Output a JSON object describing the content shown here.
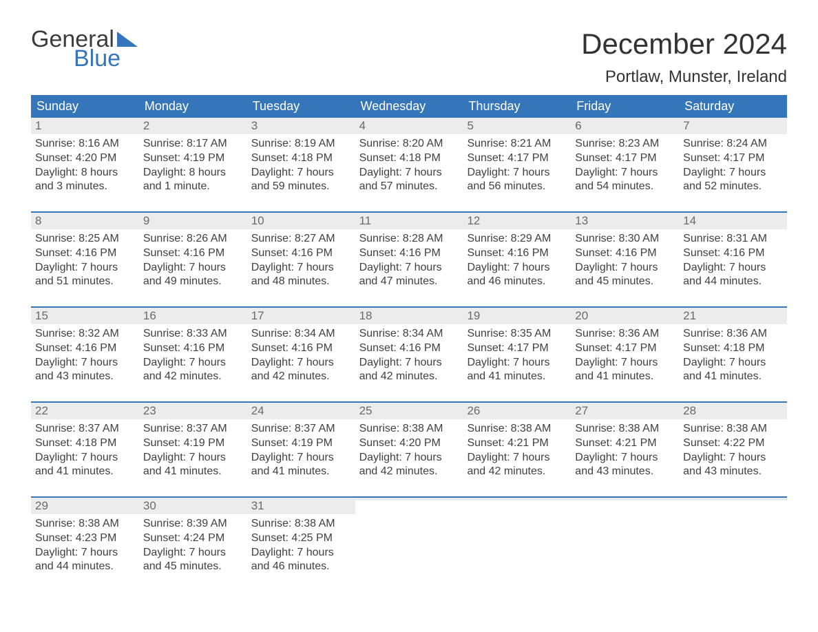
{
  "logo": {
    "general": "General",
    "blue": "Blue"
  },
  "title": "December 2024",
  "location": "Portlaw, Munster, Ireland",
  "colors": {
    "header_bg": "#3575b9",
    "header_text": "#ffffff",
    "daynum_bg": "#ececec",
    "daynum_text": "#6a6a6a",
    "body_text": "#404040",
    "page_bg": "#ffffff",
    "logo_general": "#3c3c3c",
    "logo_blue": "#3575b9",
    "week_border": "#3575b9"
  },
  "typography": {
    "title_fontsize": 42,
    "location_fontsize": 24,
    "dayheader_fontsize": 18,
    "daynum_fontsize": 17,
    "body_fontsize": 16,
    "logo_fontsize": 34
  },
  "day_labels": [
    "Sunday",
    "Monday",
    "Tuesday",
    "Wednesday",
    "Thursday",
    "Friday",
    "Saturday"
  ],
  "weeks": [
    [
      {
        "n": "1",
        "sunrise": "Sunrise: 8:16 AM",
        "sunset": "Sunset: 4:20 PM",
        "d1": "Daylight: 8 hours",
        "d2": "and 3 minutes."
      },
      {
        "n": "2",
        "sunrise": "Sunrise: 8:17 AM",
        "sunset": "Sunset: 4:19 PM",
        "d1": "Daylight: 8 hours",
        "d2": "and 1 minute."
      },
      {
        "n": "3",
        "sunrise": "Sunrise: 8:19 AM",
        "sunset": "Sunset: 4:18 PM",
        "d1": "Daylight: 7 hours",
        "d2": "and 59 minutes."
      },
      {
        "n": "4",
        "sunrise": "Sunrise: 8:20 AM",
        "sunset": "Sunset: 4:18 PM",
        "d1": "Daylight: 7 hours",
        "d2": "and 57 minutes."
      },
      {
        "n": "5",
        "sunrise": "Sunrise: 8:21 AM",
        "sunset": "Sunset: 4:17 PM",
        "d1": "Daylight: 7 hours",
        "d2": "and 56 minutes."
      },
      {
        "n": "6",
        "sunrise": "Sunrise: 8:23 AM",
        "sunset": "Sunset: 4:17 PM",
        "d1": "Daylight: 7 hours",
        "d2": "and 54 minutes."
      },
      {
        "n": "7",
        "sunrise": "Sunrise: 8:24 AM",
        "sunset": "Sunset: 4:17 PM",
        "d1": "Daylight: 7 hours",
        "d2": "and 52 minutes."
      }
    ],
    [
      {
        "n": "8",
        "sunrise": "Sunrise: 8:25 AM",
        "sunset": "Sunset: 4:16 PM",
        "d1": "Daylight: 7 hours",
        "d2": "and 51 minutes."
      },
      {
        "n": "9",
        "sunrise": "Sunrise: 8:26 AM",
        "sunset": "Sunset: 4:16 PM",
        "d1": "Daylight: 7 hours",
        "d2": "and 49 minutes."
      },
      {
        "n": "10",
        "sunrise": "Sunrise: 8:27 AM",
        "sunset": "Sunset: 4:16 PM",
        "d1": "Daylight: 7 hours",
        "d2": "and 48 minutes."
      },
      {
        "n": "11",
        "sunrise": "Sunrise: 8:28 AM",
        "sunset": "Sunset: 4:16 PM",
        "d1": "Daylight: 7 hours",
        "d2": "and 47 minutes."
      },
      {
        "n": "12",
        "sunrise": "Sunrise: 8:29 AM",
        "sunset": "Sunset: 4:16 PM",
        "d1": "Daylight: 7 hours",
        "d2": "and 46 minutes."
      },
      {
        "n": "13",
        "sunrise": "Sunrise: 8:30 AM",
        "sunset": "Sunset: 4:16 PM",
        "d1": "Daylight: 7 hours",
        "d2": "and 45 minutes."
      },
      {
        "n": "14",
        "sunrise": "Sunrise: 8:31 AM",
        "sunset": "Sunset: 4:16 PM",
        "d1": "Daylight: 7 hours",
        "d2": "and 44 minutes."
      }
    ],
    [
      {
        "n": "15",
        "sunrise": "Sunrise: 8:32 AM",
        "sunset": "Sunset: 4:16 PM",
        "d1": "Daylight: 7 hours",
        "d2": "and 43 minutes."
      },
      {
        "n": "16",
        "sunrise": "Sunrise: 8:33 AM",
        "sunset": "Sunset: 4:16 PM",
        "d1": "Daylight: 7 hours",
        "d2": "and 42 minutes."
      },
      {
        "n": "17",
        "sunrise": "Sunrise: 8:34 AM",
        "sunset": "Sunset: 4:16 PM",
        "d1": "Daylight: 7 hours",
        "d2": "and 42 minutes."
      },
      {
        "n": "18",
        "sunrise": "Sunrise: 8:34 AM",
        "sunset": "Sunset: 4:16 PM",
        "d1": "Daylight: 7 hours",
        "d2": "and 42 minutes."
      },
      {
        "n": "19",
        "sunrise": "Sunrise: 8:35 AM",
        "sunset": "Sunset: 4:17 PM",
        "d1": "Daylight: 7 hours",
        "d2": "and 41 minutes."
      },
      {
        "n": "20",
        "sunrise": "Sunrise: 8:36 AM",
        "sunset": "Sunset: 4:17 PM",
        "d1": "Daylight: 7 hours",
        "d2": "and 41 minutes."
      },
      {
        "n": "21",
        "sunrise": "Sunrise: 8:36 AM",
        "sunset": "Sunset: 4:18 PM",
        "d1": "Daylight: 7 hours",
        "d2": "and 41 minutes."
      }
    ],
    [
      {
        "n": "22",
        "sunrise": "Sunrise: 8:37 AM",
        "sunset": "Sunset: 4:18 PM",
        "d1": "Daylight: 7 hours",
        "d2": "and 41 minutes."
      },
      {
        "n": "23",
        "sunrise": "Sunrise: 8:37 AM",
        "sunset": "Sunset: 4:19 PM",
        "d1": "Daylight: 7 hours",
        "d2": "and 41 minutes."
      },
      {
        "n": "24",
        "sunrise": "Sunrise: 8:37 AM",
        "sunset": "Sunset: 4:19 PM",
        "d1": "Daylight: 7 hours",
        "d2": "and 41 minutes."
      },
      {
        "n": "25",
        "sunrise": "Sunrise: 8:38 AM",
        "sunset": "Sunset: 4:20 PM",
        "d1": "Daylight: 7 hours",
        "d2": "and 42 minutes."
      },
      {
        "n": "26",
        "sunrise": "Sunrise: 8:38 AM",
        "sunset": "Sunset: 4:21 PM",
        "d1": "Daylight: 7 hours",
        "d2": "and 42 minutes."
      },
      {
        "n": "27",
        "sunrise": "Sunrise: 8:38 AM",
        "sunset": "Sunset: 4:21 PM",
        "d1": "Daylight: 7 hours",
        "d2": "and 43 minutes."
      },
      {
        "n": "28",
        "sunrise": "Sunrise: 8:38 AM",
        "sunset": "Sunset: 4:22 PM",
        "d1": "Daylight: 7 hours",
        "d2": "and 43 minutes."
      }
    ],
    [
      {
        "n": "29",
        "sunrise": "Sunrise: 8:38 AM",
        "sunset": "Sunset: 4:23 PM",
        "d1": "Daylight: 7 hours",
        "d2": "and 44 minutes."
      },
      {
        "n": "30",
        "sunrise": "Sunrise: 8:39 AM",
        "sunset": "Sunset: 4:24 PM",
        "d1": "Daylight: 7 hours",
        "d2": "and 45 minutes."
      },
      {
        "n": "31",
        "sunrise": "Sunrise: 8:38 AM",
        "sunset": "Sunset: 4:25 PM",
        "d1": "Daylight: 7 hours",
        "d2": "and 46 minutes."
      },
      {
        "n": "",
        "sunrise": "",
        "sunset": "",
        "d1": "",
        "d2": ""
      },
      {
        "n": "",
        "sunrise": "",
        "sunset": "",
        "d1": "",
        "d2": ""
      },
      {
        "n": "",
        "sunrise": "",
        "sunset": "",
        "d1": "",
        "d2": ""
      },
      {
        "n": "",
        "sunrise": "",
        "sunset": "",
        "d1": "",
        "d2": ""
      }
    ]
  ]
}
